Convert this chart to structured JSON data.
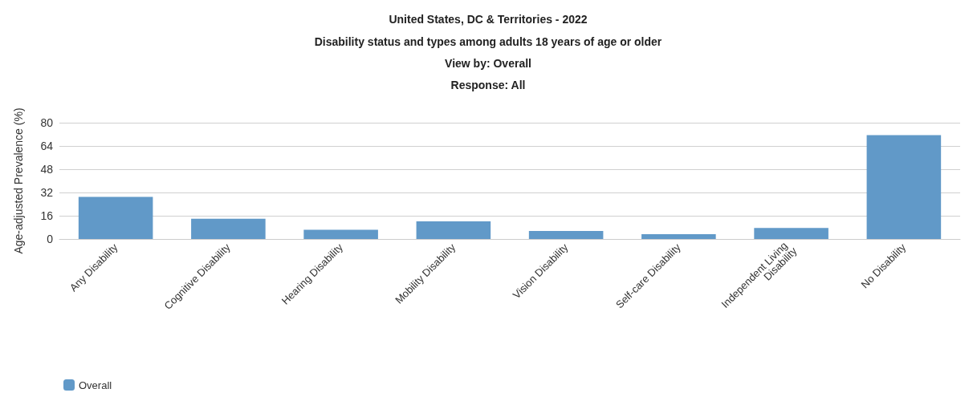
{
  "chart_data": {
    "type": "bar",
    "title": "United States, DC & Territories - 2022",
    "subtitle": "Disability status and types among adults 18 years of age or older",
    "annotations": [
      "View by: Overall",
      "Response: All"
    ],
    "ylabel": "Age-adjusted Prevalence (%)",
    "categories": [
      "Any Disability",
      "Cognitive Disability",
      "Hearing Disability",
      "Mobility Disability",
      "Vision Disability",
      "Self-care Disability",
      "Independent Living Disability",
      "No Disability"
    ],
    "series": [
      {
        "name": "Overall",
        "color": "#6199c8",
        "values": [
          28.9,
          13.9,
          6.3,
          12.2,
          5.5,
          3.3,
          7.6,
          71.4
        ]
      }
    ],
    "ylim": [
      0,
      80
    ],
    "yticks": [
      0,
      16,
      32,
      48,
      64,
      80
    ],
    "grid": "y",
    "legend": "bottom left"
  }
}
